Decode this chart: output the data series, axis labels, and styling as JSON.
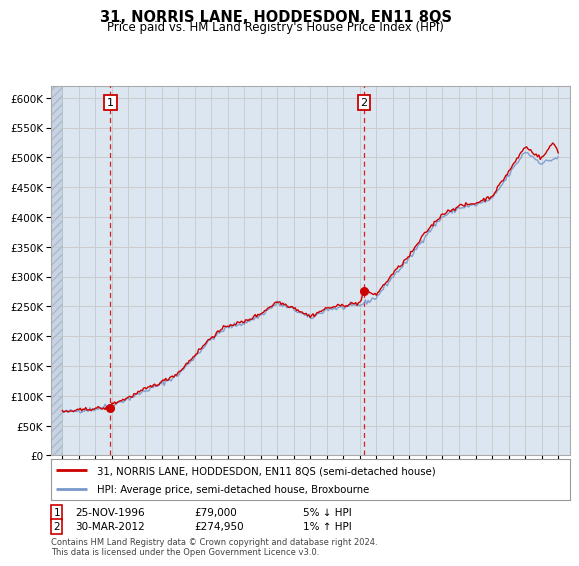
{
  "title": "31, NORRIS LANE, HODDESDON, EN11 8QS",
  "subtitle": "Price paid vs. HM Land Registry's House Price Index (HPI)",
  "ylim": [
    0,
    620000
  ],
  "yticks": [
    0,
    50000,
    100000,
    150000,
    200000,
    250000,
    300000,
    350000,
    400000,
    450000,
    500000,
    550000,
    600000
  ],
  "hpi_color": "#7799cc",
  "price_color": "#cc0000",
  "grid_color": "#cccccc",
  "bg_plot": "#dce6f0",
  "annotation_box_color": "#cc0000",
  "sale1_year": 1996.9,
  "sale1_price": 79000,
  "sale1_label": "1",
  "sale1_date": "25-NOV-1996",
  "sale1_amount": "£79,000",
  "sale1_note": "5% ↓ HPI",
  "sale2_year": 2012.25,
  "sale2_price": 274950,
  "sale2_label": "2",
  "sale2_date": "30-MAR-2012",
  "sale2_amount": "£274,950",
  "sale2_note": "1% ↑ HPI",
  "legend_line1": "31, NORRIS LANE, HODDESDON, EN11 8QS (semi-detached house)",
  "legend_line2": "HPI: Average price, semi-detached house, Broxbourne",
  "footer": "Contains HM Land Registry data © Crown copyright and database right 2024.\nThis data is licensed under the Open Government Licence v3.0."
}
